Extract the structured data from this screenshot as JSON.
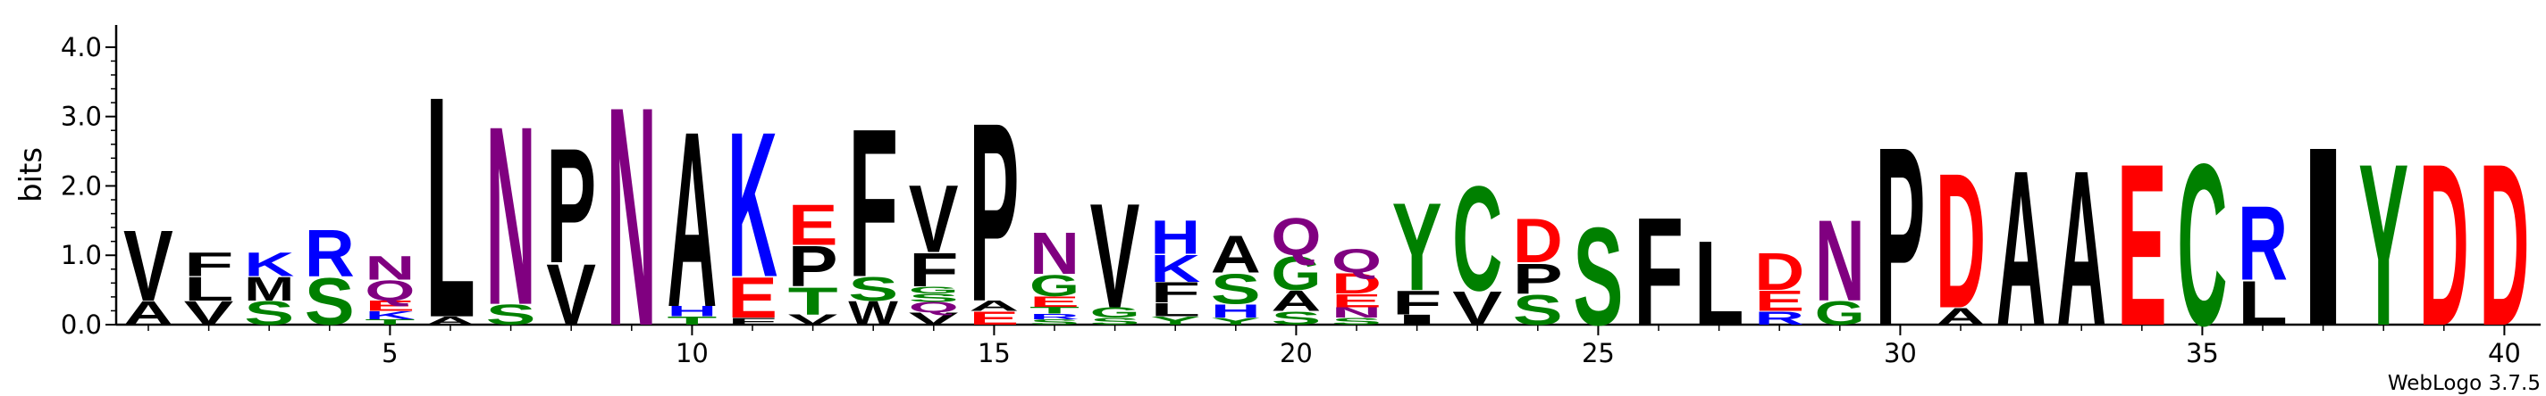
{
  "chart_data": {
    "type": "sequence-logo",
    "ylabel": "bits",
    "ylim": [
      0,
      4.32
    ],
    "y_ticks": [
      {
        "value": 0,
        "label": "0.0"
      },
      {
        "value": 1,
        "label": "1.0"
      },
      {
        "value": 2,
        "label": "2.0"
      },
      {
        "value": 3,
        "label": "3.0"
      },
      {
        "value": 4,
        "label": "4.0"
      }
    ],
    "x_range": [
      1,
      40
    ],
    "x_ticks": [
      {
        "value": 5,
        "label": "5"
      },
      {
        "value": 10,
        "label": "10"
      },
      {
        "value": 15,
        "label": "15"
      },
      {
        "value": 20,
        "label": "20"
      },
      {
        "value": 25,
        "label": "25"
      },
      {
        "value": 30,
        "label": "30"
      },
      {
        "value": 35,
        "label": "35"
      },
      {
        "value": 40,
        "label": "40"
      }
    ],
    "credit": "WebLogo 3.7.5",
    "colors": {
      "hydrophobic": "#000000",
      "polar": "#008000",
      "basic": "#0000FF",
      "acidic": "#FF0000",
      "amide": "#800080"
    },
    "color_map": {
      "A": "#000000",
      "V": "#000000",
      "L": "#000000",
      "I": "#000000",
      "F": "#000000",
      "P": "#000000",
      "W": "#000000",
      "M": "#000000",
      "G": "#008000",
      "S": "#008000",
      "T": "#008000",
      "Y": "#008000",
      "C": "#008000",
      "K": "#0000FF",
      "R": "#0000FF",
      "H": "#0000FF",
      "D": "#FF0000",
      "E": "#FF0000",
      "N": "#800080",
      "Q": "#800080"
    },
    "positions": [
      {
        "pos": 1,
        "letters": [
          {
            "aa": "A",
            "bits": 0.35
          },
          {
            "aa": "V",
            "bits": 1.05
          }
        ]
      },
      {
        "pos": 2,
        "letters": [
          {
            "aa": "V",
            "bits": 0.35
          },
          {
            "aa": "L",
            "bits": 0.35
          },
          {
            "aa": "F",
            "bits": 0.35
          }
        ]
      },
      {
        "pos": 3,
        "letters": [
          {
            "aa": "S",
            "bits": 0.35
          },
          {
            "aa": "M",
            "bits": 0.35
          },
          {
            "aa": "K",
            "bits": 0.35
          }
        ]
      },
      {
        "pos": 4,
        "letters": [
          {
            "aa": "S",
            "bits": 0.7
          },
          {
            "aa": "R",
            "bits": 0.7
          }
        ]
      },
      {
        "pos": 5,
        "letters": [
          {
            "aa": "T",
            "bits": 0.08
          },
          {
            "aa": "K",
            "bits": 0.12
          },
          {
            "aa": "E",
            "bits": 0.15
          },
          {
            "aa": "Q",
            "bits": 0.3
          },
          {
            "aa": "N",
            "bits": 0.35
          }
        ]
      },
      {
        "pos": 6,
        "letters": [
          {
            "aa": "A",
            "bits": 0.12
          },
          {
            "aa": "L",
            "bits": 3.28
          }
        ]
      },
      {
        "pos": 7,
        "letters": [
          {
            "aa": "S",
            "bits": 0.3
          },
          {
            "aa": "N",
            "bits": 2.65
          }
        ]
      },
      {
        "pos": 8,
        "letters": [
          {
            "aa": "V",
            "bits": 0.9
          },
          {
            "aa": "P",
            "bits": 1.7
          }
        ]
      },
      {
        "pos": 9,
        "letters": [
          {
            "aa": "N",
            "bits": 3.25
          }
        ]
      },
      {
        "pos": 10,
        "letters": [
          {
            "aa": "T",
            "bits": 0.12
          },
          {
            "aa": "H",
            "bits": 0.15
          },
          {
            "aa": "A",
            "bits": 2.6
          }
        ]
      },
      {
        "pos": 11,
        "letters": [
          {
            "aa": "F",
            "bits": 0.1
          },
          {
            "aa": "E",
            "bits": 0.6
          },
          {
            "aa": "K",
            "bits": 2.15
          }
        ]
      },
      {
        "pos": 12,
        "letters": [
          {
            "aa": "V",
            "bits": 0.15
          },
          {
            "aa": "T",
            "bits": 0.4
          },
          {
            "aa": "P",
            "bits": 0.6
          },
          {
            "aa": "E",
            "bits": 0.6
          }
        ]
      },
      {
        "pos": 13,
        "letters": [
          {
            "aa": "W",
            "bits": 0.35
          },
          {
            "aa": "S",
            "bits": 0.35
          },
          {
            "aa": "F",
            "bits": 2.2
          }
        ]
      },
      {
        "pos": 14,
        "letters": [
          {
            "aa": "V",
            "bits": 0.18
          },
          {
            "aa": "Q",
            "bits": 0.15
          },
          {
            "aa": "S",
            "bits": 0.12
          },
          {
            "aa": "G",
            "bits": 0.1
          },
          {
            "aa": "F",
            "bits": 0.5
          },
          {
            "aa": "V",
            "bits": 1.0
          }
        ]
      },
      {
        "pos": 15,
        "letters": [
          {
            "aa": "E",
            "bits": 0.2
          },
          {
            "aa": "A",
            "bits": 0.15
          },
          {
            "aa": "P",
            "bits": 2.65
          }
        ]
      },
      {
        "pos": 16,
        "letters": [
          {
            "aa": "S",
            "bits": 0.08
          },
          {
            "aa": "R",
            "bits": 0.08
          },
          {
            "aa": "T",
            "bits": 0.1
          },
          {
            "aa": "E",
            "bits": 0.15
          },
          {
            "aa": "G",
            "bits": 0.32
          },
          {
            "aa": "N",
            "bits": 0.62
          }
        ]
      },
      {
        "pos": 17,
        "letters": [
          {
            "aa": "S",
            "bits": 0.1
          },
          {
            "aa": "G",
            "bits": 0.15
          },
          {
            "aa": "V",
            "bits": 1.55
          }
        ]
      },
      {
        "pos": 18,
        "letters": [
          {
            "aa": "Y",
            "bits": 0.12
          },
          {
            "aa": "L",
            "bits": 0.2
          },
          {
            "aa": "F",
            "bits": 0.3
          },
          {
            "aa": "K",
            "bits": 0.4
          },
          {
            "aa": "H",
            "bits": 0.5
          }
        ]
      },
      {
        "pos": 19,
        "letters": [
          {
            "aa": "Y",
            "bits": 0.1
          },
          {
            "aa": "H",
            "bits": 0.2
          },
          {
            "aa": "S",
            "bits": 0.45
          },
          {
            "aa": "A",
            "bits": 0.55
          }
        ]
      },
      {
        "pos": 20,
        "letters": [
          {
            "aa": "S",
            "bits": 0.2
          },
          {
            "aa": "A",
            "bits": 0.3
          },
          {
            "aa": "G",
            "bits": 0.5
          },
          {
            "aa": "Q",
            "bits": 0.55
          }
        ]
      },
      {
        "pos": 21,
        "letters": [
          {
            "aa": "S",
            "bits": 0.1
          },
          {
            "aa": "N",
            "bits": 0.15
          },
          {
            "aa": "E",
            "bits": 0.2
          },
          {
            "aa": "D",
            "bits": 0.3
          },
          {
            "aa": "Q",
            "bits": 0.35
          }
        ]
      },
      {
        "pos": 22,
        "letters": [
          {
            "aa": "I",
            "bits": 0.15
          },
          {
            "aa": "F",
            "bits": 0.35
          },
          {
            "aa": "Y",
            "bits": 1.3
          }
        ]
      },
      {
        "pos": 23,
        "letters": [
          {
            "aa": "V",
            "bits": 0.5
          },
          {
            "aa": "C",
            "bits": 1.55
          }
        ]
      },
      {
        "pos": 24,
        "letters": [
          {
            "aa": "S",
            "bits": 0.45
          },
          {
            "aa": "P",
            "bits": 0.45
          },
          {
            "aa": "D",
            "bits": 0.65
          }
        ]
      },
      {
        "pos": 25,
        "letters": [
          {
            "aa": "S",
            "bits": 1.45
          }
        ]
      },
      {
        "pos": 26,
        "letters": [
          {
            "aa": "F",
            "bits": 1.6
          }
        ]
      },
      {
        "pos": 27,
        "letters": [
          {
            "aa": "L",
            "bits": 1.25
          }
        ]
      },
      {
        "pos": 28,
        "letters": [
          {
            "aa": "R",
            "bits": 0.2
          },
          {
            "aa": "E",
            "bits": 0.3
          },
          {
            "aa": "D",
            "bits": 0.55
          }
        ]
      },
      {
        "pos": 29,
        "letters": [
          {
            "aa": "G",
            "bits": 0.35
          },
          {
            "aa": "N",
            "bits": 1.2
          }
        ]
      },
      {
        "pos": 30,
        "letters": [
          {
            "aa": "P",
            "bits": 2.65
          }
        ]
      },
      {
        "pos": 31,
        "letters": [
          {
            "aa": "A",
            "bits": 0.25
          },
          {
            "aa": "D",
            "bits": 2.0
          }
        ]
      },
      {
        "pos": 32,
        "letters": [
          {
            "aa": "A",
            "bits": 2.3
          }
        ]
      },
      {
        "pos": 33,
        "letters": [
          {
            "aa": "A",
            "bits": 2.3
          }
        ]
      },
      {
        "pos": 34,
        "letters": [
          {
            "aa": "E",
            "bits": 2.4
          }
        ]
      },
      {
        "pos": 35,
        "letters": [
          {
            "aa": "C",
            "bits": 2.4
          }
        ]
      },
      {
        "pos": 36,
        "letters": [
          {
            "aa": "L",
            "bits": 0.65
          },
          {
            "aa": "R",
            "bits": 1.1
          }
        ]
      },
      {
        "pos": 37,
        "letters": [
          {
            "aa": "I",
            "bits": 2.65
          }
        ]
      },
      {
        "pos": 38,
        "letters": [
          {
            "aa": "Y",
            "bits": 2.4
          }
        ]
      },
      {
        "pos": 39,
        "letters": [
          {
            "aa": "D",
            "bits": 2.4
          }
        ]
      },
      {
        "pos": 40,
        "letters": [
          {
            "aa": "D",
            "bits": 2.4
          }
        ]
      }
    ]
  }
}
